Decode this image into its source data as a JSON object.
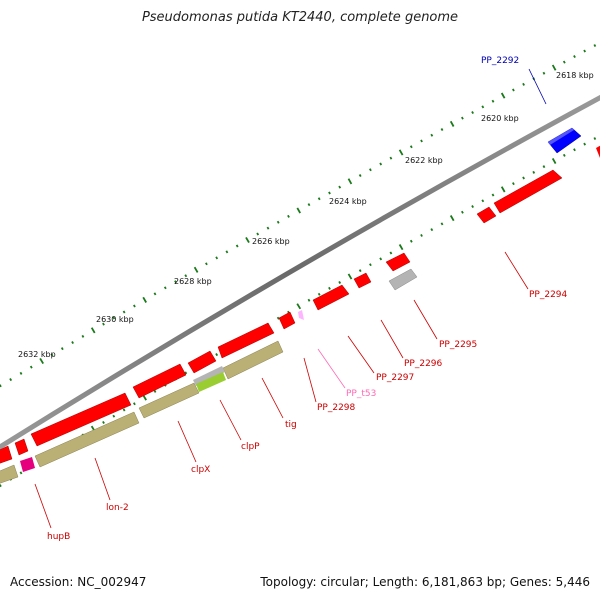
{
  "title": "Pseudomonas putida KT2440, complete genome",
  "footer": {
    "accession": "Accession: NC_002947",
    "stats": "Topology: circular; Length: 6,181,863 bp; Genes: 5,446"
  },
  "colors": {
    "backbone": "#808080",
    "cds": "#ff0000",
    "cds_dark": "#b40000",
    "highlight_gene": "#0000ff",
    "trna": "#ffb4ff",
    "pseudogene": "#b4b4b4",
    "hupB": "#e6007e",
    "orf_track": "#bab075",
    "orf_highlight": "#9acd32",
    "tick": "#1a7a1a"
  },
  "scale": {
    "ticks": [
      {
        "kbp": 2618,
        "label": "2618 kbp"
      },
      {
        "kbp": 2620,
        "label": "2620 kbp"
      },
      {
        "kbp": 2622,
        "label": "2622 kbp"
      },
      {
        "kbp": 2624,
        "label": "2624 kbp"
      },
      {
        "kbp": 2626,
        "label": "2626 kbp"
      },
      {
        "kbp": 2628,
        "label": "2628 kbp"
      },
      {
        "kbp": 2630,
        "label": "2630 kbp"
      },
      {
        "kbp": 2632,
        "label": "2632 kbp"
      }
    ]
  },
  "genes": [
    {
      "name": "PP_2292",
      "label_color": "#0000b4",
      "type": "cds_highlight"
    },
    {
      "name": "PP_2294",
      "label_color": "#cc0000",
      "type": "cds"
    },
    {
      "name": "PP_2295",
      "label_color": "#cc0000",
      "type": "cds"
    },
    {
      "name": "PP_2296",
      "label_color": "#cc0000",
      "type": "cds"
    },
    {
      "name": "PP_2297",
      "label_color": "#cc0000",
      "type": "cds"
    },
    {
      "name": "PP_t53",
      "label_color": "#ff69b4",
      "type": "trna"
    },
    {
      "name": "PP_2298",
      "label_color": "#cc0000",
      "type": "cds"
    },
    {
      "name": "tig",
      "label_color": "#cc0000",
      "type": "cds"
    },
    {
      "name": "clpP",
      "label_color": "#cc0000",
      "type": "cds"
    },
    {
      "name": "clpX",
      "label_color": "#cc0000",
      "type": "cds"
    },
    {
      "name": "lon-2",
      "label_color": "#cc0000",
      "type": "cds"
    },
    {
      "name": "hupB",
      "label_color": "#cc0000",
      "type": "cds"
    }
  ]
}
